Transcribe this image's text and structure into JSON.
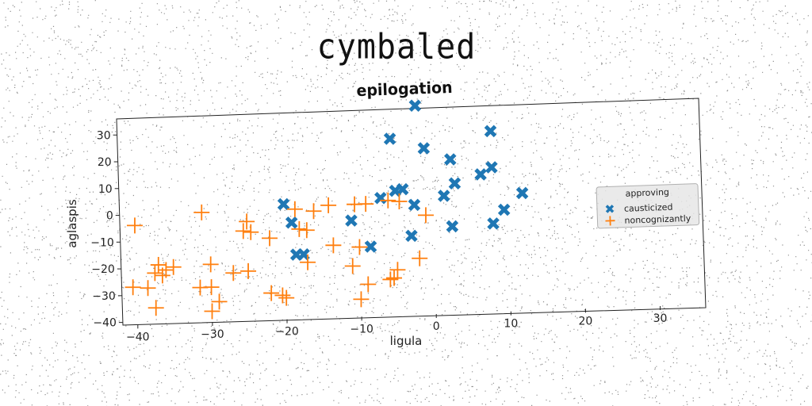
{
  "page_title": "cymbaled",
  "chart_data": {
    "type": "scatter",
    "title": "epilogation",
    "xlabel": "ligula",
    "ylabel": "aglaspis",
    "xlim": [
      -42,
      36
    ],
    "ylim": [
      -41,
      36
    ],
    "xticks": [
      -40,
      -30,
      -20,
      -10,
      0,
      10,
      20,
      30
    ],
    "yticks": [
      -40,
      -30,
      -20,
      -10,
      0,
      10,
      20,
      30
    ],
    "grid": false,
    "legend_title": "approving",
    "legend_position": "right",
    "series": [
      {
        "name": "causticized",
        "color": "#1f77b4",
        "marker": "x",
        "points": [
          [
            -2,
            37
          ],
          [
            -5.5,
            25
          ],
          [
            -1,
            21
          ],
          [
            2.5,
            16.5
          ],
          [
            8,
            26.5
          ],
          [
            8,
            13
          ],
          [
            3,
            7.5
          ],
          [
            6.5,
            10.5
          ],
          [
            1.5,
            3
          ],
          [
            -4,
            6
          ],
          [
            -5,
            5.5
          ],
          [
            -7,
            3
          ],
          [
            12,
            3
          ],
          [
            -2.5,
            0
          ],
          [
            -20,
            2
          ],
          [
            -19,
            -5
          ],
          [
            -11,
            -5
          ],
          [
            9.5,
            -3
          ],
          [
            2.5,
            -8.5
          ],
          [
            8,
            -8
          ],
          [
            -18.5,
            -17
          ],
          [
            -17.5,
            -17
          ],
          [
            -8.5,
            -15
          ],
          [
            -3,
            -11.5
          ]
        ]
      },
      {
        "name": "noncognizantly",
        "color": "#ff7f0e",
        "marker": "+",
        "points": [
          [
            -40,
            -4
          ],
          [
            -31,
            0
          ],
          [
            -18.5,
            0
          ],
          [
            -16,
            -1
          ],
          [
            -14,
            1
          ],
          [
            -10.5,
            1
          ],
          [
            -9,
            1
          ],
          [
            -6,
            2
          ],
          [
            -4.5,
            1.5
          ],
          [
            -25,
            -4
          ],
          [
            -25.5,
            -7.5
          ],
          [
            -24.5,
            -8
          ],
          [
            -22,
            -10.5
          ],
          [
            -18,
            -7.5
          ],
          [
            -17,
            -8
          ],
          [
            -13.5,
            -14
          ],
          [
            -10,
            -15
          ],
          [
            -37,
            -19
          ],
          [
            -36,
            -21
          ],
          [
            -35,
            -20
          ],
          [
            -37.5,
            -22
          ],
          [
            -36.5,
            -23
          ],
          [
            -30,
            -19.5
          ],
          [
            -17,
            -20
          ],
          [
            -11,
            -22
          ],
          [
            -2,
            -20
          ],
          [
            -27,
            -23
          ],
          [
            -25,
            -22.5
          ],
          [
            -38.5,
            -27.5
          ],
          [
            -40.5,
            -27
          ],
          [
            -37.5,
            -35
          ],
          [
            -31.5,
            -28
          ],
          [
            -30,
            -28
          ],
          [
            -22,
            -31
          ],
          [
            -20.5,
            -32
          ],
          [
            -20,
            -33
          ],
          [
            -29,
            -33.5
          ],
          [
            -30,
            -37
          ],
          [
            -9,
            -29
          ],
          [
            -10,
            -34.5
          ],
          [
            -5,
            -24
          ],
          [
            -5.5,
            -27
          ],
          [
            -6,
            -27.5
          ],
          [
            -1,
            -4
          ]
        ]
      }
    ]
  }
}
